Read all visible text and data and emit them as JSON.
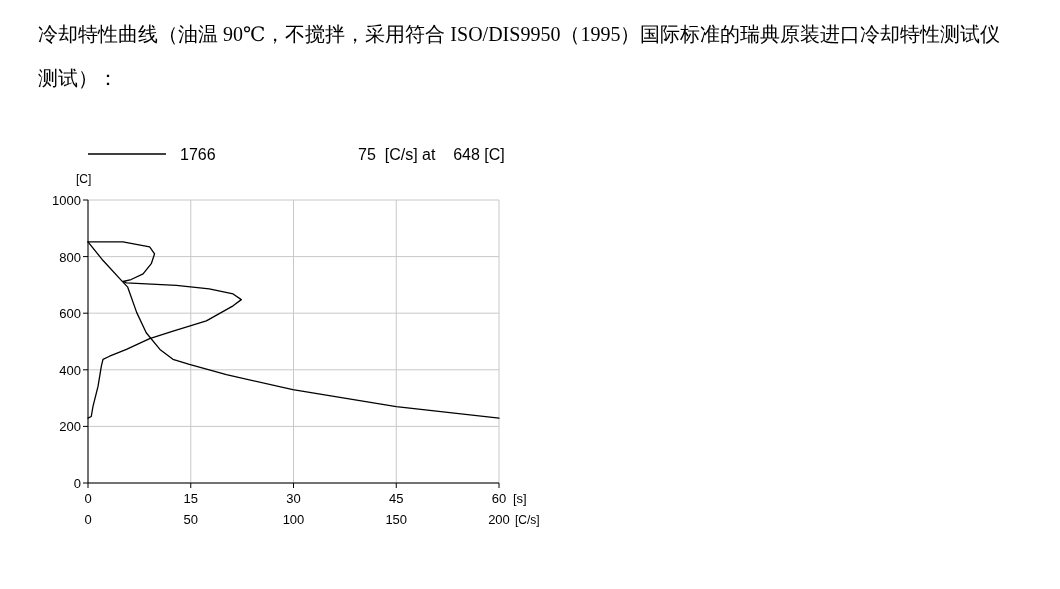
{
  "chart_data": {
    "type": "line",
    "title": "冷却特性曲线（油温 90℃，不搅拌，采用符合 ISO/DIS9950（1995）国际标准的瑞典原装进口冷却特性测试仪测试）：",
    "ylabel": "[C]",
    "xlabel": "[s]",
    "x2label": "[C/s]",
    "xlim": [
      0,
      60
    ],
    "xticks": [
      0,
      15,
      30,
      45,
      60
    ],
    "x2lim": [
      0,
      200
    ],
    "x2ticks": [
      0,
      50,
      100,
      150,
      200
    ],
    "ylim": [
      0,
      1000
    ],
    "yticks": [
      0,
      200,
      400,
      600,
      800,
      1000
    ],
    "grid": true,
    "legend": "top left",
    "annotations": [
      "75  [C/s] at    648 [C]"
    ],
    "series": [
      {
        "name": "1766",
        "color": "#000000",
        "x": [
          0,
          2.2,
          4.9,
          5.8,
          7.1,
          8.5,
          10.5,
          12.4,
          14.8,
          20.2,
          29.9,
          45,
          60
        ],
        "values": [
          852,
          786,
          715,
          692,
          603,
          531,
          472,
          437,
          419,
          383,
          330,
          270,
          229
        ]
      },
      {
        "color": "#000000",
        "axis": "x2",
        "x": [
          0,
          17,
          30,
          32.4,
          30.8,
          26.8,
          21,
          17,
          18.7,
          43,
          59,
          70.6,
          74.6,
          70.6,
          57.6,
          41.4,
          30,
          18.7,
          10.5,
          7.3,
          6.5,
          4.9,
          2.4,
          1.6,
          0
        ],
        "values": [
          852,
          852,
          834,
          810,
          775,
          739,
          719,
          712,
          707,
          698,
          686,
          668,
          648,
          626,
          573,
          537,
          510,
          472,
          448,
          437,
          413,
          342,
          270,
          235,
          229
        ]
      }
    ]
  }
}
